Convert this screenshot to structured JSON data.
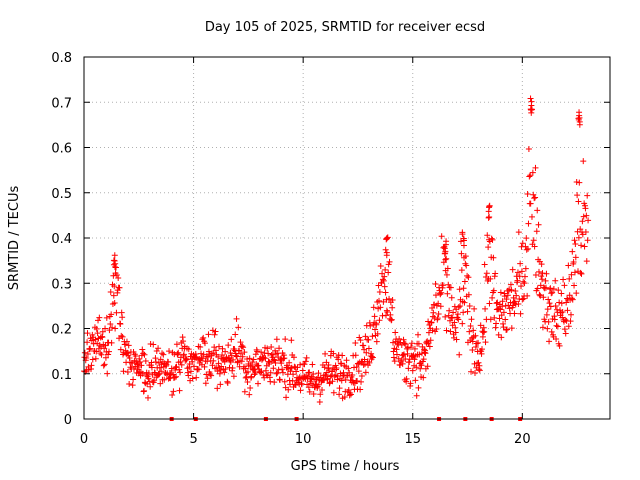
{
  "chart_data": {
    "type": "scatter",
    "title": "Day 105 of 2025, SRMTID for receiver ecsd",
    "xlabel": "GPS time / hours",
    "ylabel": "SRMTID / TECUs",
    "xlim": [
      0,
      24
    ],
    "ylim": [
      0,
      0.8
    ],
    "x_ticks": [
      0,
      5,
      10,
      15,
      20
    ],
    "x_tick_labels": [
      "0",
      "5",
      "10",
      "15",
      "20"
    ],
    "y_ticks": [
      0,
      0.1,
      0.2,
      0.3,
      0.4,
      0.5,
      0.6,
      0.7,
      0.8
    ],
    "y_tick_labels": [
      "0",
      "0.1",
      "0.2",
      "0.3",
      "0.4",
      "0.5",
      "0.6",
      "0.7",
      "0.8"
    ],
    "grid": true,
    "marker": "+",
    "color": "#ff0000",
    "trend": {
      "x": [
        0,
        0.5,
        1.0,
        1.5,
        2.0,
        2.5,
        3.0,
        3.5,
        4.0,
        4.5,
        5.0,
        5.5,
        6.0,
        6.5,
        7.0,
        7.5,
        8.0,
        8.5,
        9.0,
        9.5,
        10.0,
        10.5,
        11.0,
        11.5,
        12.0,
        12.5,
        13.0,
        13.5,
        14.0,
        14.5,
        15.0,
        15.5,
        16.0,
        16.5,
        17.0,
        17.5,
        18.0,
        18.5,
        19.0,
        19.5,
        20.0,
        20.5,
        21.0,
        21.5,
        22.0,
        22.5,
        23.0
      ],
      "y": [
        0.12,
        0.17,
        0.15,
        0.2,
        0.12,
        0.11,
        0.1,
        0.13,
        0.1,
        0.15,
        0.11,
        0.13,
        0.14,
        0.12,
        0.16,
        0.11,
        0.12,
        0.13,
        0.12,
        0.11,
        0.09,
        0.08,
        0.1,
        0.1,
        0.1,
        0.12,
        0.15,
        0.28,
        0.2,
        0.13,
        0.14,
        0.12,
        0.24,
        0.25,
        0.18,
        0.2,
        0.15,
        0.2,
        0.23,
        0.26,
        0.3,
        0.4,
        0.28,
        0.22,
        0.25,
        0.3,
        0.4
      ]
    },
    "peaks": [
      {
        "x": 1.4,
        "y": 0.37
      },
      {
        "x": 13.8,
        "y": 0.4
      },
      {
        "x": 16.5,
        "y": 0.39
      },
      {
        "x": 17.3,
        "y": 0.42
      },
      {
        "x": 18.5,
        "y": 0.48
      },
      {
        "x": 20.4,
        "y": 0.71
      },
      {
        "x": 22.6,
        "y": 0.68
      }
    ],
    "gap_markers_x": [
      4.0,
      5.1,
      8.3,
      9.7,
      16.2,
      17.4,
      18.6,
      19.9
    ]
  }
}
